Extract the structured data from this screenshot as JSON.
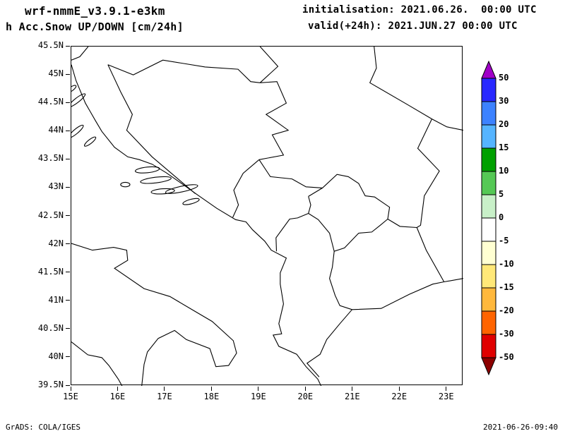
{
  "header": {
    "model": "wrf-nmmE_v3.9.1-e3km",
    "variable": "h Acc.Snow UP/DOWN [cm/24h]",
    "init_label": "initialisation: 2021.06.26.  00:00 UTC",
    "valid_label": "valid(+24h): 2021.JUN.27 00:00 UTC"
  },
  "footer": {
    "grads_credit": "GrADS: COLA/IGES",
    "timestamp": "2021-06-26-09:40"
  },
  "chart_data": {
    "type": "map",
    "title": "wrf-nmmE_v3.9.1-e3km  h Acc.Snow UP/DOWN [cm/24h]",
    "region": "Adriatic / Balkans",
    "lon_range": [
      15,
      23.35
    ],
    "lat_range": [
      39.5,
      45.5
    ],
    "grid": false,
    "plotted_field_values": "none shaded (map area is entirely unshaded / 0)",
    "lon_ticks": [
      {
        "value": 15,
        "label": "15E"
      },
      {
        "value": 16,
        "label": "16E"
      },
      {
        "value": 17,
        "label": "17E"
      },
      {
        "value": 18,
        "label": "18E"
      },
      {
        "value": 19,
        "label": "19E"
      },
      {
        "value": 20,
        "label": "20E"
      },
      {
        "value": 21,
        "label": "21E"
      },
      {
        "value": 22,
        "label": "22E"
      },
      {
        "value": 23,
        "label": "23E"
      }
    ],
    "lat_ticks": [
      {
        "value": 45.5,
        "label": "45.5N"
      },
      {
        "value": 45,
        "label": "45N"
      },
      {
        "value": 44.5,
        "label": "44.5N"
      },
      {
        "value": 44,
        "label": "44N"
      },
      {
        "value": 43.5,
        "label": "43.5N"
      },
      {
        "value": 43,
        "label": "43N"
      },
      {
        "value": 42.5,
        "label": "42.5N"
      },
      {
        "value": 42,
        "label": "42N"
      },
      {
        "value": 41.5,
        "label": "41.5N"
      },
      {
        "value": 41,
        "label": "41N"
      },
      {
        "value": 40.5,
        "label": "40.5N"
      },
      {
        "value": 40,
        "label": "40N"
      },
      {
        "value": 39.5,
        "label": "39.5N"
      }
    ],
    "colorbar": {
      "units": "cm/24h",
      "position": "right",
      "boundary_labels": [
        "50",
        "30",
        "20",
        "15",
        "10",
        "5",
        "0",
        "-5",
        "-10",
        "-15",
        "-20",
        "-30",
        "-50"
      ],
      "segment_colors_top_to_bottom": [
        "#a000c8",
        "#2828ff",
        "#3c82ff",
        "#55b4ff",
        "#00a000",
        "#55c855",
        "#c8f0c8",
        "#ffffff",
        "#ffffd2",
        "#ffe878",
        "#ffb83c",
        "#ff6400",
        "#e00000",
        "#8c0000"
      ]
    },
    "outlines": [
      {
        "name": "slovenia-croatia-border",
        "points": [
          [
            15.36,
            45.5
          ],
          [
            15.18,
            45.32
          ],
          [
            15.0,
            45.26
          ]
        ]
      },
      {
        "name": "east-adriatic-coast",
        "points": [
          [
            15.0,
            45.18
          ],
          [
            15.1,
            44.9
          ],
          [
            15.3,
            44.5
          ],
          [
            15.52,
            44.18
          ],
          [
            15.65,
            44.0
          ],
          [
            15.92,
            43.72
          ],
          [
            16.2,
            43.55
          ],
          [
            16.45,
            43.5
          ],
          [
            16.72,
            43.42
          ],
          [
            17.02,
            43.27
          ],
          [
            17.45,
            43.02
          ],
          [
            17.65,
            42.9
          ],
          [
            18.1,
            42.64
          ],
          [
            18.5,
            42.44
          ],
          [
            18.72,
            42.4
          ],
          [
            18.86,
            42.26
          ],
          [
            19.12,
            42.06
          ],
          [
            19.26,
            41.9
          ],
          [
            19.58,
            41.76
          ],
          [
            19.45,
            41.5
          ],
          [
            19.45,
            41.3
          ],
          [
            19.52,
            40.95
          ],
          [
            19.42,
            40.6
          ],
          [
            19.48,
            40.42
          ],
          [
            19.3,
            40.4
          ],
          [
            19.42,
            40.2
          ],
          [
            19.8,
            40.06
          ],
          [
            20.0,
            39.84
          ],
          [
            20.25,
            39.62
          ],
          [
            20.32,
            39.5
          ]
        ]
      },
      {
        "name": "italy-adriatic-ionian-coast",
        "points": [
          [
            15.0,
            42.02
          ],
          [
            15.45,
            41.9
          ],
          [
            15.9,
            41.95
          ],
          [
            16.18,
            41.9
          ],
          [
            16.2,
            41.72
          ],
          [
            15.92,
            41.58
          ],
          [
            16.55,
            41.22
          ],
          [
            17.1,
            41.08
          ],
          [
            17.55,
            40.86
          ],
          [
            18.0,
            40.64
          ],
          [
            18.45,
            40.3
          ],
          [
            18.52,
            40.08
          ],
          [
            18.35,
            39.86
          ],
          [
            18.08,
            39.84
          ],
          [
            17.95,
            40.16
          ],
          [
            17.45,
            40.32
          ],
          [
            17.2,
            40.48
          ],
          [
            16.85,
            40.34
          ],
          [
            16.62,
            40.1
          ],
          [
            16.55,
            39.88
          ],
          [
            16.5,
            39.5
          ]
        ]
      },
      {
        "name": "italy-tyrrhenian-coast",
        "points": [
          [
            15.0,
            40.28
          ],
          [
            15.35,
            40.05
          ],
          [
            15.65,
            40.0
          ],
          [
            15.8,
            39.86
          ],
          [
            16.0,
            39.62
          ],
          [
            16.08,
            39.5
          ]
        ]
      },
      {
        "name": "croatia-bosnia-north-border",
        "points": [
          [
            15.78,
            45.18
          ],
          [
            16.32,
            45.0
          ],
          [
            16.95,
            45.26
          ],
          [
            17.85,
            45.14
          ],
          [
            18.55,
            45.1
          ],
          [
            18.82,
            44.88
          ],
          [
            19.02,
            44.86
          ]
        ]
      },
      {
        "name": "croatia-serbia-border",
        "points": [
          [
            19.02,
            45.5
          ],
          [
            19.4,
            45.15
          ],
          [
            19.02,
            44.86
          ]
        ]
      },
      {
        "name": "croatia-bosnia-west-border",
        "points": [
          [
            15.78,
            45.18
          ],
          [
            16.05,
            44.7
          ],
          [
            16.3,
            44.3
          ],
          [
            16.18,
            44.02
          ],
          [
            16.72,
            43.55
          ],
          [
            17.3,
            43.14
          ],
          [
            17.64,
            42.9
          ]
        ]
      },
      {
        "name": "bosnia-serbia-border",
        "points": [
          [
            19.02,
            44.86
          ],
          [
            19.38,
            44.88
          ],
          [
            19.58,
            44.5
          ],
          [
            19.15,
            44.3
          ],
          [
            19.62,
            44.02
          ],
          [
            19.28,
            43.94
          ],
          [
            19.52,
            43.58
          ],
          [
            19.0,
            43.5
          ]
        ]
      },
      {
        "name": "bosnia-montenegro-border",
        "points": [
          [
            19.0,
            43.5
          ],
          [
            18.66,
            43.26
          ],
          [
            18.46,
            42.96
          ],
          [
            18.56,
            42.7
          ],
          [
            18.44,
            42.48
          ]
        ]
      },
      {
        "name": "serbia-montenegro-border",
        "points": [
          [
            19.0,
            43.5
          ],
          [
            19.24,
            43.2
          ],
          [
            19.7,
            43.16
          ],
          [
            20.0,
            43.02
          ],
          [
            20.35,
            43.0
          ]
        ]
      },
      {
        "name": "montenegro-albania-border",
        "points": [
          [
            19.37,
            41.88
          ],
          [
            19.36,
            42.12
          ],
          [
            19.65,
            42.45
          ],
          [
            19.82,
            42.47
          ],
          [
            20.05,
            42.55
          ]
        ]
      },
      {
        "name": "kosovo-border",
        "points": [
          [
            20.05,
            42.85
          ],
          [
            20.35,
            43.0
          ],
          [
            20.66,
            43.24
          ],
          [
            20.9,
            43.2
          ],
          [
            21.12,
            43.08
          ],
          [
            21.26,
            42.86
          ],
          [
            21.46,
            42.84
          ],
          [
            21.78,
            42.66
          ],
          [
            21.74,
            42.45
          ],
          [
            21.58,
            42.34
          ],
          [
            21.4,
            42.22
          ],
          [
            21.12,
            42.2
          ],
          [
            20.82,
            41.94
          ],
          [
            20.6,
            41.88
          ],
          [
            20.5,
            42.2
          ],
          [
            20.26,
            42.44
          ],
          [
            20.05,
            42.55
          ],
          [
            20.1,
            42.7
          ],
          [
            20.05,
            42.85
          ]
        ]
      },
      {
        "name": "serbia-romania-border",
        "points": [
          [
            21.45,
            45.5
          ],
          [
            21.5,
            45.12
          ],
          [
            21.36,
            44.86
          ],
          [
            22.15,
            44.48
          ],
          [
            22.68,
            44.22
          ]
        ]
      },
      {
        "name": "romania-bulgaria-danube",
        "points": [
          [
            22.68,
            44.22
          ],
          [
            23.0,
            44.08
          ],
          [
            23.35,
            44.02
          ]
        ]
      },
      {
        "name": "serbia-bulgaria-border",
        "points": [
          [
            22.68,
            44.22
          ],
          [
            22.38,
            43.7
          ],
          [
            22.84,
            43.3
          ],
          [
            22.52,
            42.86
          ],
          [
            22.44,
            42.34
          ],
          [
            22.36,
            42.3
          ]
        ]
      },
      {
        "name": "serbia-macedonia-border",
        "points": [
          [
            21.74,
            42.45
          ],
          [
            22.0,
            42.32
          ],
          [
            22.36,
            42.3
          ]
        ]
      },
      {
        "name": "macedonia-bulgaria-border",
        "points": [
          [
            22.36,
            42.3
          ],
          [
            22.56,
            41.9
          ],
          [
            22.94,
            41.34
          ]
        ]
      },
      {
        "name": "macedonia-greece-border",
        "points": [
          [
            22.94,
            41.34
          ],
          [
            22.7,
            41.3
          ],
          [
            22.2,
            41.12
          ],
          [
            21.6,
            40.87
          ],
          [
            20.98,
            40.85
          ]
        ]
      },
      {
        "name": "macedonia-albania-border",
        "points": [
          [
            20.98,
            40.85
          ],
          [
            20.72,
            40.92
          ],
          [
            20.62,
            41.1
          ],
          [
            20.5,
            41.4
          ],
          [
            20.56,
            41.6
          ],
          [
            20.6,
            41.88
          ]
        ]
      },
      {
        "name": "albania-greece-border",
        "points": [
          [
            20.98,
            40.85
          ],
          [
            20.72,
            40.6
          ],
          [
            20.44,
            40.32
          ],
          [
            20.3,
            40.06
          ],
          [
            20.02,
            39.9
          ],
          [
            20.28,
            39.66
          ]
        ]
      },
      {
        "name": "greece-bulgaria-border",
        "points": [
          [
            22.94,
            41.34
          ],
          [
            23.35,
            41.4
          ]
        ]
      }
    ],
    "islands": [
      {
        "lon": 15.0,
        "lat": 44.75,
        "rx": 0.12,
        "ry": 0.035,
        "angle": -35
      },
      {
        "lon": 15.12,
        "lat": 44.55,
        "rx": 0.22,
        "ry": 0.04,
        "angle": -38
      },
      {
        "lon": 15.1,
        "lat": 44.0,
        "rx": 0.2,
        "ry": 0.04,
        "angle": -40
      },
      {
        "lon": 15.4,
        "lat": 43.82,
        "rx": 0.15,
        "ry": 0.035,
        "angle": -38
      },
      {
        "lon": 16.62,
        "lat": 43.32,
        "rx": 0.26,
        "ry": 0.05,
        "angle": -6
      },
      {
        "lon": 16.8,
        "lat": 43.14,
        "rx": 0.33,
        "ry": 0.05,
        "angle": -7
      },
      {
        "lon": 16.15,
        "lat": 43.06,
        "rx": 0.1,
        "ry": 0.04,
        "angle": 0
      },
      {
        "lon": 16.95,
        "lat": 42.94,
        "rx": 0.25,
        "ry": 0.045,
        "angle": -4
      },
      {
        "lon": 17.35,
        "lat": 42.98,
        "rx": 0.35,
        "ry": 0.05,
        "angle": -12
      },
      {
        "lon": 17.55,
        "lat": 42.76,
        "rx": 0.18,
        "ry": 0.04,
        "angle": -15
      }
    ]
  }
}
